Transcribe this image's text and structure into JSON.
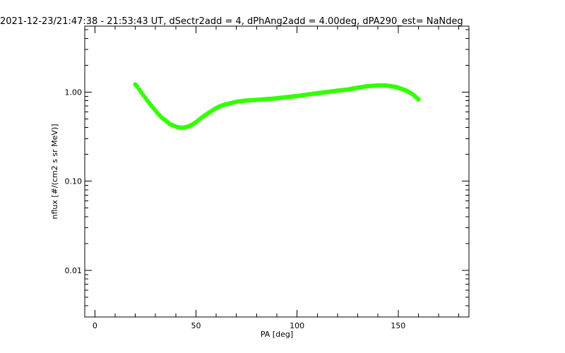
{
  "chart_data": {
    "type": "scatter",
    "title": "2021-12-23/21:47:38 - 21:53:43 UT, dSectr2add = 4, dPhAng2add = 4.00deg, dPA290_est=    NaNdeg",
    "xlabel": "PA [deg]",
    "ylabel": "nflux [#/(cm2 s sr MeV)]",
    "xlim": [
      -5,
      185
    ],
    "ylim": [
      0.003,
      5.5
    ],
    "yscale": "log",
    "grid": false,
    "x_ticks": [
      {
        "value": 0,
        "label": "0"
      },
      {
        "value": 50,
        "label": "50"
      },
      {
        "value": 100,
        "label": "100"
      },
      {
        "value": 150,
        "label": "150"
      }
    ],
    "y_ticks": [
      {
        "value": 0.01,
        "label": "0.01"
      },
      {
        "value": 0.1,
        "label": "0.10"
      },
      {
        "value": 1,
        "label": "1.00"
      }
    ],
    "marker_color": "#33ff00",
    "points": [
      {
        "x": 20,
        "y": 1.22
      },
      {
        "x": 21,
        "y": 1.15
      },
      {
        "x": 22,
        "y": 1.07
      },
      {
        "x": 23,
        "y": 0.99
      },
      {
        "x": 24,
        "y": 0.92
      },
      {
        "x": 25,
        "y": 0.86
      },
      {
        "x": 26,
        "y": 0.8
      },
      {
        "x": 27,
        "y": 0.75
      },
      {
        "x": 28,
        "y": 0.7
      },
      {
        "x": 29,
        "y": 0.66
      },
      {
        "x": 30,
        "y": 0.62
      },
      {
        "x": 31,
        "y": 0.58
      },
      {
        "x": 32,
        "y": 0.55
      },
      {
        "x": 33,
        "y": 0.52
      },
      {
        "x": 34,
        "y": 0.5
      },
      {
        "x": 35,
        "y": 0.48
      },
      {
        "x": 36,
        "y": 0.46
      },
      {
        "x": 37,
        "y": 0.44
      },
      {
        "x": 38,
        "y": 0.43
      },
      {
        "x": 39,
        "y": 0.42
      },
      {
        "x": 40,
        "y": 0.41
      },
      {
        "x": 41,
        "y": 0.405
      },
      {
        "x": 42,
        "y": 0.4
      },
      {
        "x": 43,
        "y": 0.4
      },
      {
        "x": 44,
        "y": 0.4
      },
      {
        "x": 45,
        "y": 0.405
      },
      {
        "x": 46,
        "y": 0.41
      },
      {
        "x": 47,
        "y": 0.42
      },
      {
        "x": 48,
        "y": 0.43
      },
      {
        "x": 49,
        "y": 0.445
      },
      {
        "x": 50,
        "y": 0.46
      },
      {
        "x": 51,
        "y": 0.48
      },
      {
        "x": 52,
        "y": 0.5
      },
      {
        "x": 53,
        "y": 0.52
      },
      {
        "x": 54,
        "y": 0.54
      },
      {
        "x": 55,
        "y": 0.56
      },
      {
        "x": 56,
        "y": 0.58
      },
      {
        "x": 57,
        "y": 0.6
      },
      {
        "x": 58,
        "y": 0.62
      },
      {
        "x": 59,
        "y": 0.64
      },
      {
        "x": 60,
        "y": 0.66
      },
      {
        "x": 61,
        "y": 0.68
      },
      {
        "x": 62,
        "y": 0.695
      },
      {
        "x": 63,
        "y": 0.71
      },
      {
        "x": 64,
        "y": 0.72
      },
      {
        "x": 65,
        "y": 0.73
      },
      {
        "x": 66,
        "y": 0.74
      },
      {
        "x": 67,
        "y": 0.75
      },
      {
        "x": 68,
        "y": 0.76
      },
      {
        "x": 69,
        "y": 0.77
      },
      {
        "x": 70,
        "y": 0.78
      },
      {
        "x": 71,
        "y": 0.785
      },
      {
        "x": 72,
        "y": 0.79
      },
      {
        "x": 73,
        "y": 0.795
      },
      {
        "x": 74,
        "y": 0.8
      },
      {
        "x": 75,
        "y": 0.805
      },
      {
        "x": 76,
        "y": 0.81
      },
      {
        "x": 77,
        "y": 0.81
      },
      {
        "x": 78,
        "y": 0.815
      },
      {
        "x": 79,
        "y": 0.815
      },
      {
        "x": 80,
        "y": 0.82
      },
      {
        "x": 81,
        "y": 0.82
      },
      {
        "x": 82,
        "y": 0.825
      },
      {
        "x": 83,
        "y": 0.83
      },
      {
        "x": 84,
        "y": 0.83
      },
      {
        "x": 85,
        "y": 0.835
      },
      {
        "x": 86,
        "y": 0.84
      },
      {
        "x": 87,
        "y": 0.84
      },
      {
        "x": 88,
        "y": 0.845
      },
      {
        "x": 89,
        "y": 0.85
      },
      {
        "x": 90,
        "y": 0.855
      },
      {
        "x": 91,
        "y": 0.86
      },
      {
        "x": 92,
        "y": 0.865
      },
      {
        "x": 93,
        "y": 0.87
      },
      {
        "x": 94,
        "y": 0.875
      },
      {
        "x": 95,
        "y": 0.88
      },
      {
        "x": 96,
        "y": 0.885
      },
      {
        "x": 97,
        "y": 0.89
      },
      {
        "x": 98,
        "y": 0.895
      },
      {
        "x": 99,
        "y": 0.9
      },
      {
        "x": 100,
        "y": 0.905
      },
      {
        "x": 101,
        "y": 0.91
      },
      {
        "x": 102,
        "y": 0.92
      },
      {
        "x": 103,
        "y": 0.925
      },
      {
        "x": 104,
        "y": 0.93
      },
      {
        "x": 105,
        "y": 0.94
      },
      {
        "x": 106,
        "y": 0.945
      },
      {
        "x": 107,
        "y": 0.95
      },
      {
        "x": 108,
        "y": 0.96
      },
      {
        "x": 109,
        "y": 0.965
      },
      {
        "x": 110,
        "y": 0.97
      },
      {
        "x": 111,
        "y": 0.98
      },
      {
        "x": 112,
        "y": 0.985
      },
      {
        "x": 113,
        "y": 0.99
      },
      {
        "x": 114,
        "y": 1.0
      },
      {
        "x": 115,
        "y": 1.005
      },
      {
        "x": 116,
        "y": 1.01
      },
      {
        "x": 117,
        "y": 1.02
      },
      {
        "x": 118,
        "y": 1.025
      },
      {
        "x": 119,
        "y": 1.03
      },
      {
        "x": 120,
        "y": 1.04
      },
      {
        "x": 121,
        "y": 1.045
      },
      {
        "x": 122,
        "y": 1.05
      },
      {
        "x": 123,
        "y": 1.06
      },
      {
        "x": 124,
        "y": 1.065
      },
      {
        "x": 125,
        "y": 1.07
      },
      {
        "x": 126,
        "y": 1.08
      },
      {
        "x": 127,
        "y": 1.09
      },
      {
        "x": 128,
        "y": 1.1
      },
      {
        "x": 129,
        "y": 1.11
      },
      {
        "x": 130,
        "y": 1.12
      },
      {
        "x": 131,
        "y": 1.13
      },
      {
        "x": 132,
        "y": 1.14
      },
      {
        "x": 133,
        "y": 1.15
      },
      {
        "x": 134,
        "y": 1.16
      },
      {
        "x": 135,
        "y": 1.165
      },
      {
        "x": 136,
        "y": 1.17
      },
      {
        "x": 137,
        "y": 1.175
      },
      {
        "x": 138,
        "y": 1.18
      },
      {
        "x": 139,
        "y": 1.185
      },
      {
        "x": 140,
        "y": 1.19
      },
      {
        "x": 141,
        "y": 1.19
      },
      {
        "x": 142,
        "y": 1.19
      },
      {
        "x": 143,
        "y": 1.19
      },
      {
        "x": 144,
        "y": 1.185
      },
      {
        "x": 145,
        "y": 1.18
      },
      {
        "x": 146,
        "y": 1.17
      },
      {
        "x": 147,
        "y": 1.16
      },
      {
        "x": 148,
        "y": 1.15
      },
      {
        "x": 149,
        "y": 1.14
      },
      {
        "x": 150,
        "y": 1.12
      },
      {
        "x": 151,
        "y": 1.1
      },
      {
        "x": 152,
        "y": 1.08
      },
      {
        "x": 153,
        "y": 1.06
      },
      {
        "x": 154,
        "y": 1.04
      },
      {
        "x": 155,
        "y": 1.01
      },
      {
        "x": 156,
        "y": 0.98
      },
      {
        "x": 157,
        "y": 0.95
      },
      {
        "x": 158,
        "y": 0.91
      },
      {
        "x": 159,
        "y": 0.87
      },
      {
        "x": 160,
        "y": 0.83
      }
    ]
  }
}
